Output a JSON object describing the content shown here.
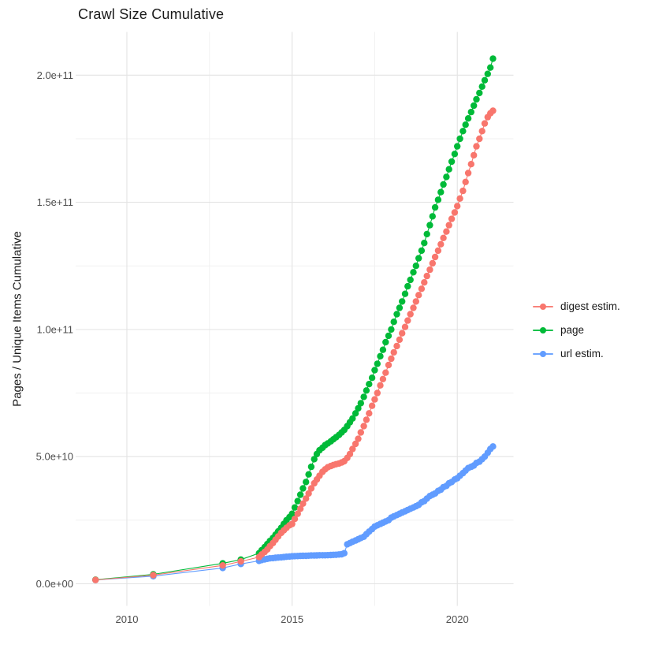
{
  "title": "Crawl Size Cumulative",
  "axes": {
    "y_title": "Pages / Unique Items Cumulative",
    "x_title": ""
  },
  "colors": {
    "digest": "#F8766D",
    "page": "#00BA38",
    "url": "#619CFF",
    "grid_major": "#E3E3E3",
    "grid_minor": "#F1F1F1",
    "axis_text": "#4d4d4d",
    "title_text": "#1a1a1a",
    "background": "#ffffff"
  },
  "chart_data": {
    "type": "line",
    "title": "Crawl Size Cumulative",
    "xlabel": "",
    "ylabel": "Pages / Unique Items Cumulative",
    "grid": "on",
    "legend_position": "right-center",
    "y_unit": "pages, values in billions (1e9)",
    "x_range": [
      2008.45,
      2021.7
    ],
    "y_range_e9": [
      -8.7,
      217
    ],
    "x_ticks": [
      2010,
      2015,
      2020
    ],
    "x_tick_labels": [
      "2010",
      "2015",
      "2020"
    ],
    "x_minor_ticks": [
      2012.5,
      2017.5
    ],
    "y_ticks_e9": [
      0,
      50,
      100,
      150,
      200
    ],
    "y_tick_labels": [
      "0.0e+00",
      "5.0e+10",
      "1.0e+11",
      "1.5e+11",
      "2.0e+11"
    ],
    "y_minor_ticks_e9": [
      25,
      75,
      125,
      175
    ],
    "x": [
      2009.05,
      2010.8,
      2012.9,
      2013.45,
      2014.0,
      2014.08,
      2014.17,
      2014.25,
      2014.33,
      2014.42,
      2014.5,
      2014.58,
      2014.67,
      2014.75,
      2014.83,
      2014.92,
      2015.0,
      2015.08,
      2015.17,
      2015.25,
      2015.33,
      2015.42,
      2015.5,
      2015.58,
      2015.67,
      2015.75,
      2015.83,
      2015.92,
      2016.0,
      2016.08,
      2016.17,
      2016.25,
      2016.33,
      2016.42,
      2016.5,
      2016.58,
      2016.67,
      2016.75,
      2016.83,
      2016.92,
      2017.0,
      2017.08,
      2017.17,
      2017.25,
      2017.33,
      2017.42,
      2017.5,
      2017.58,
      2017.67,
      2017.75,
      2017.83,
      2017.92,
      2018.0,
      2018.08,
      2018.17,
      2018.25,
      2018.33,
      2018.42,
      2018.5,
      2018.58,
      2018.67,
      2018.75,
      2018.83,
      2018.92,
      2019.0,
      2019.08,
      2019.17,
      2019.25,
      2019.33,
      2019.42,
      2019.5,
      2019.58,
      2019.67,
      2019.75,
      2019.83,
      2019.92,
      2020.0,
      2020.08,
      2020.17,
      2020.25,
      2020.33,
      2020.42,
      2020.5,
      2020.58,
      2020.67,
      2020.75,
      2020.83,
      2020.92,
      2021.0,
      2021.08
    ],
    "series": [
      {
        "name": "digest estim.",
        "color": "#F8766D",
        "values_e9": [
          1.5,
          3.4,
          7.2,
          8.8,
          10.5,
          11.5,
          12.5,
          13.5,
          14.8,
          16,
          17.3,
          18.6,
          20,
          21,
          22,
          23,
          23.5,
          25.5,
          27.5,
          29.5,
          31.5,
          33.5,
          35.5,
          37.5,
          39.5,
          41,
          42.5,
          44,
          45,
          45.8,
          46.3,
          46.7,
          47,
          47.3,
          47.7,
          48.2,
          49.5,
          51,
          53,
          55,
          57,
          59.5,
          62,
          64.5,
          67,
          70,
          72.5,
          75,
          78,
          80.5,
          83,
          86,
          88.5,
          91,
          93.5,
          96,
          98.5,
          101,
          103.5,
          106,
          108.5,
          111,
          113.5,
          116,
          118.5,
          121,
          123.5,
          126,
          128.5,
          131,
          133.5,
          136,
          138.5,
          141,
          143.5,
          146,
          148.5,
          151.5,
          154.5,
          158,
          161.5,
          165,
          168.5,
          172,
          175,
          178,
          181,
          183.5,
          185,
          186
        ]
      },
      {
        "name": "page",
        "color": "#00BA38",
        "values_e9": [
          1.6,
          3.7,
          8.0,
          9.5,
          12,
          13.2,
          14.4,
          15.6,
          16.8,
          18,
          19.3,
          20.6,
          22,
          23.5,
          25,
          26.2,
          27.5,
          30,
          32.5,
          35,
          37.5,
          40,
          43,
          46,
          49,
          51,
          52.5,
          53.5,
          54.5,
          55.2,
          56,
          56.8,
          57.6,
          58.5,
          59.5,
          60.5,
          62,
          63.5,
          65,
          67,
          69,
          71,
          73.5,
          76,
          78.5,
          81,
          84,
          86.5,
          89.5,
          92,
          95,
          97.5,
          100,
          103,
          106,
          108.5,
          111,
          114,
          117,
          119.5,
          122.5,
          125,
          128,
          131,
          134,
          137.5,
          141,
          144.5,
          148,
          151,
          154,
          157,
          160,
          163,
          166,
          169,
          172,
          175,
          178,
          180.5,
          183,
          185.5,
          188,
          190.5,
          193,
          195.5,
          198,
          200.5,
          203,
          206.5
        ]
      },
      {
        "name": "url estim.",
        "color": "#619CFF",
        "values_e9": [
          1.5,
          3.0,
          6.2,
          7.8,
          9,
          9.3,
          9.6,
          9.8,
          10,
          10.1,
          10.2,
          10.3,
          10.4,
          10.5,
          10.6,
          10.7,
          10.8,
          10.85,
          10.9,
          10.95,
          11,
          11,
          11.05,
          11.1,
          11.1,
          11.15,
          11.2,
          11.2,
          11.2,
          11.25,
          11.3,
          11.35,
          11.4,
          11.5,
          11.6,
          12,
          15.5,
          16,
          16.5,
          17,
          17.5,
          18,
          18.5,
          19.5,
          20.5,
          21.5,
          22.5,
          23,
          23.5,
          24,
          24.5,
          25,
          26,
          26.5,
          27,
          27.5,
          28,
          28.5,
          29,
          29.5,
          30,
          30.5,
          31,
          32,
          32.5,
          33.5,
          34.5,
          35,
          35.5,
          36.5,
          37,
          38,
          38.5,
          39.5,
          40,
          41,
          41.5,
          42.5,
          43.5,
          44.5,
          45.5,
          46,
          46.5,
          47.5,
          48,
          49,
          50,
          51.5,
          53,
          54
        ]
      }
    ],
    "legend_entries": [
      "digest estim.",
      "page",
      "url estim."
    ]
  }
}
